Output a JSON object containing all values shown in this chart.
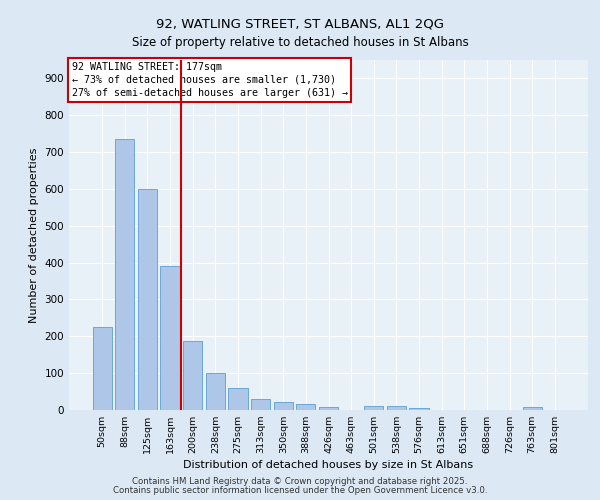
{
  "title1": "92, WATLING STREET, ST ALBANS, AL1 2QG",
  "title2": "Size of property relative to detached houses in St Albans",
  "xlabel": "Distribution of detached houses by size in St Albans",
  "ylabel": "Number of detached properties",
  "categories": [
    "50sqm",
    "88sqm",
    "125sqm",
    "163sqm",
    "200sqm",
    "238sqm",
    "275sqm",
    "313sqm",
    "350sqm",
    "388sqm",
    "426sqm",
    "463sqm",
    "501sqm",
    "538sqm",
    "576sqm",
    "613sqm",
    "651sqm",
    "688sqm",
    "726sqm",
    "763sqm",
    "801sqm"
  ],
  "values": [
    225,
    735,
    600,
    390,
    188,
    100,
    60,
    30,
    22,
    17,
    8,
    0,
    12,
    10,
    5,
    0,
    0,
    0,
    0,
    8,
    0
  ],
  "bar_color": "#aec6e8",
  "bar_edge_color": "#5a9fd4",
  "vline_x": 3.5,
  "vline_color": "#cc0000",
  "annotation_title": "92 WATLING STREET: 177sqm",
  "annotation_line1": "← 73% of detached houses are smaller (1,730)",
  "annotation_line2": "27% of semi-detached houses are larger (631) →",
  "annotation_box_color": "#ffffff",
  "annotation_box_edge": "#cc0000",
  "ylim": [
    0,
    950
  ],
  "yticks": [
    0,
    100,
    200,
    300,
    400,
    500,
    600,
    700,
    800,
    900
  ],
  "bg_color": "#dce9f5",
  "plot_bg_color": "#e8f0f8",
  "footer1": "Contains HM Land Registry data © Crown copyright and database right 2025.",
  "footer2": "Contains public sector information licensed under the Open Government Licence v3.0."
}
